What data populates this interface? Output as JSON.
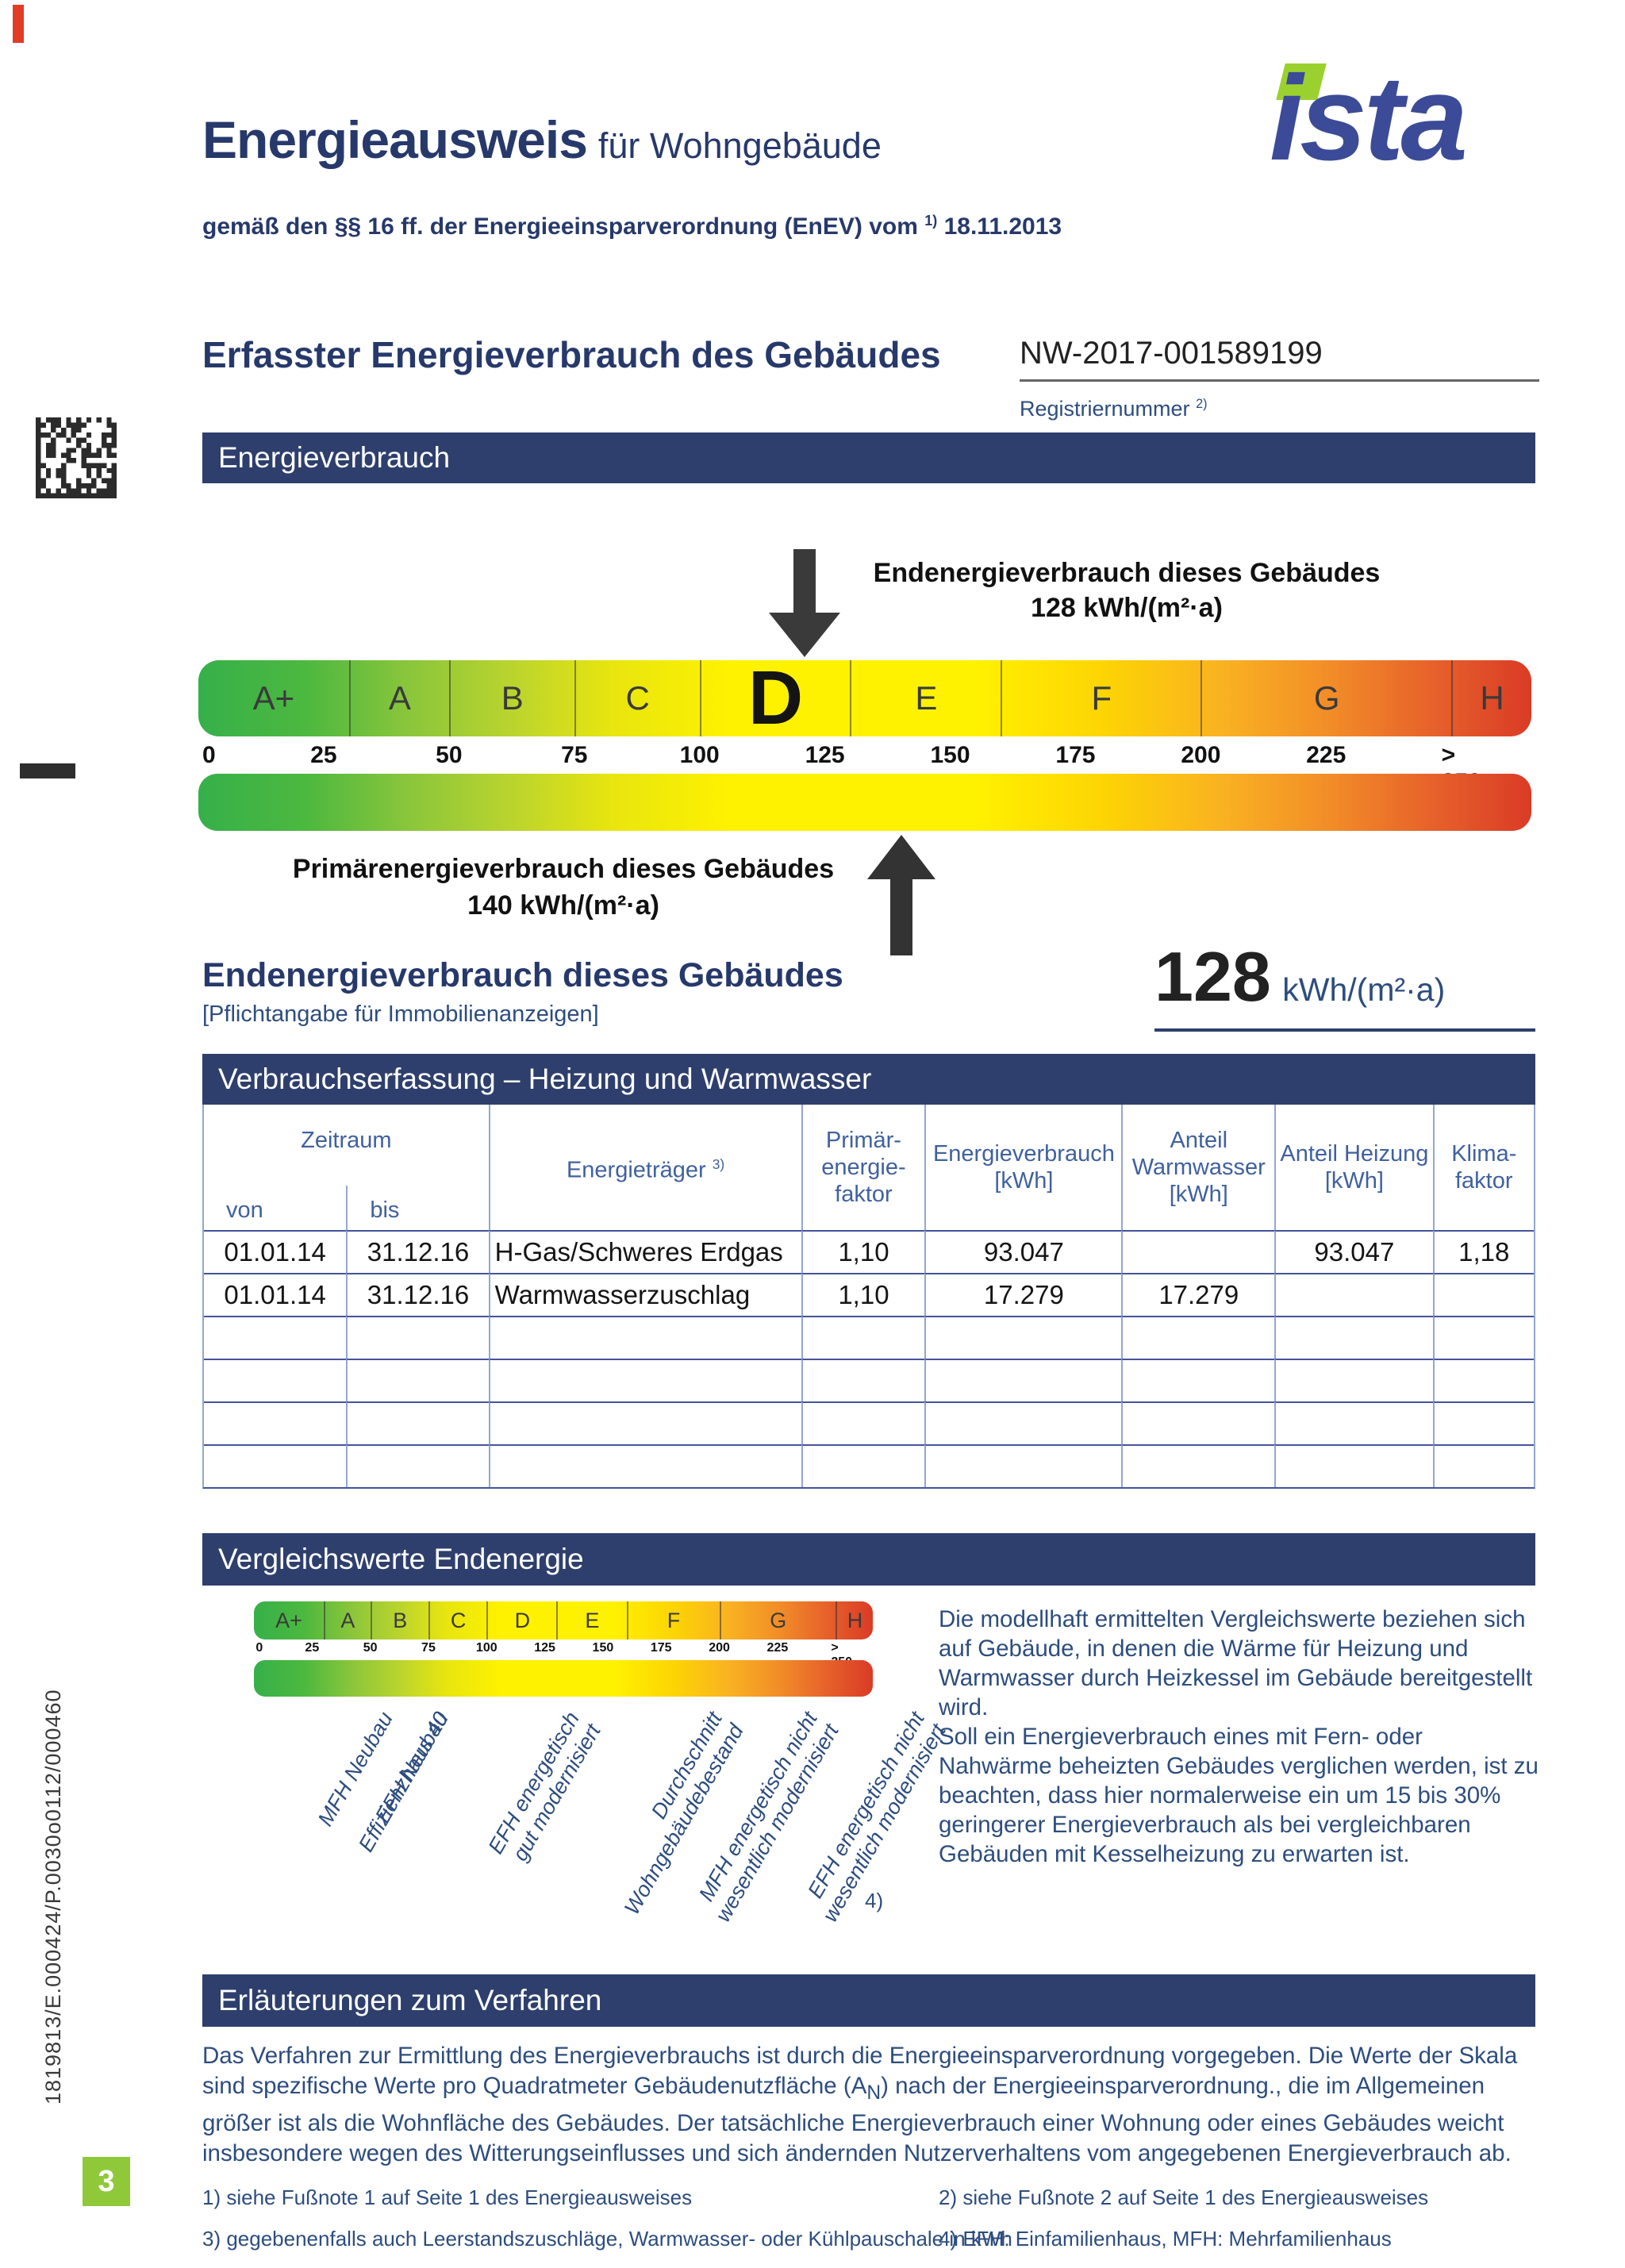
{
  "header": {
    "title": "Energieausweis",
    "title_suffix": "für Wohngebäude",
    "subtitle_prefix": "gemäß den §§ 16 ff. der Energieeinsparverordnung (EnEV) vom",
    "subtitle_sup": "1)",
    "subtitle_date": "18.11.2013",
    "logo_text": "ista"
  },
  "section": {
    "title": "Erfasster Energieverbrauch des Gebäudes",
    "registration_number": "NW-2017-001589199",
    "registration_label": "Registriernummer",
    "registration_sup": "2)"
  },
  "banners": {
    "energieverbrauch": "Energieverbrauch",
    "verbrauchserfassung": "Verbrauchserfassung – Heizung und Warmwasser",
    "vergleichswerte": "Vergleichswerte Endenergie",
    "erlaeuterungen": "Erläuterungen zum Verfahren"
  },
  "scale": {
    "classes": [
      "A+",
      "A",
      "B",
      "C",
      "D",
      "E",
      "F",
      "G",
      "H"
    ],
    "highlight_class": "D",
    "ticks": [
      "0",
      "25",
      "50",
      "75",
      "100",
      "125",
      "150",
      "175",
      "200",
      "225",
      "> 250"
    ],
    "end_label": "Endenergieverbrauch dieses Gebäudes",
    "end_value": "128 kWh/(m²·a)",
    "primary_label": "Primärenergieverbrauch dieses Gebäudes",
    "primary_value": "140 kWh/(m²·a)"
  },
  "endenergy": {
    "heading": "Endenergieverbrauch dieses Gebäudes",
    "subheading": "[Pflichtangabe für Immobilienanzeigen]",
    "value": "128",
    "unit": "kWh/(m²·a)"
  },
  "table": {
    "headers": {
      "zeitraum": "Zeitraum",
      "von": "von",
      "bis": "bis",
      "energietraeger": "Energieträger",
      "energietraeger_sup": "3)",
      "primaerfaktor": "Primär-\nenergie-\nfaktor",
      "energieverbrauch": "Energieverbrauch\n[kWh]",
      "anteil_warmwasser": "Anteil\nWarmwasser\n[kWh]",
      "anteil_heizung": "Anteil Heizung\n[kWh]",
      "klimafaktor": "Klima-\nfaktor"
    },
    "rows": [
      [
        "01.01.14",
        "31.12.16",
        "H-Gas/Schweres Erdgas",
        "1,10",
        "93.047",
        "",
        "93.047",
        "1,18"
      ],
      [
        "01.01.14",
        "31.12.16",
        "Warmwasserzuschlag",
        "1,10",
        "17.279",
        "17.279",
        "",
        ""
      ]
    ]
  },
  "vergleich": {
    "labels": [
      "Effizienzhaus 40",
      "MFH Neubau",
      "EFH Neubau",
      "EFH energetisch\ngut modernisiert",
      "Durchschnitt\nWohngebäudebestand",
      "MFH energetisch nicht\nwesentlich modernisiert",
      "EFH energetisch nicht\nwesentlich modernisiert"
    ],
    "footnote_mark": "4)",
    "info_text": "Die modellhaft ermittelten Vergleichswerte beziehen sich auf Gebäude, in denen die Wärme für Heizung und Warmwasser durch Heizkessel im Gebäude bereitgestellt wird.\nSoll ein Energieverbrauch eines mit Fern- oder Nahwärme beheizten Gebäudes verglichen werden, ist zu beachten, dass hier normalerweise ein um 15 bis 30% geringerer Energieverbrauch als bei vergleichbaren Gebäuden mit Kesselheizung zu erwarten ist."
  },
  "explain": {
    "body_before": "Das Verfahren zur Ermittlung des Energieverbrauchs ist durch die Energieeinsparverordnung vorgegeben. Die Werte der Skala sind spezifische Werte pro Quadratmeter Gebäudenutzfläche (A",
    "body_sub": "N",
    "body_after": ") nach der Energieeinsparverordnung., die im Allgemeinen größer ist als die Wohnfläche des Gebäudes. Der tatsächliche Energieverbrauch einer Wohnung oder eines Gebäudes weicht insbesondere wegen des Witterungseinflusses und sich ändernden Nutzerverhaltens vom angegebenen Energieverbrauch ab."
  },
  "footnotes": {
    "fn1": "1) siehe Fußnote 1 auf Seite 1 des Energieausweises",
    "fn2": "2) siehe Fußnote 2 auf Seite 1 des Energieausweises",
    "fn3": "3) gegebenenfalls auch Leerstandszuschläge, Warmwasser- oder Kühlpauschale in kWh",
    "fn4": "4) EFH: Einfamilienhaus, MFH: Mehrfamilienhaus"
  },
  "page": {
    "number": "3",
    "side_code": "1819813/E.000424/P.0030o0112/000460"
  }
}
